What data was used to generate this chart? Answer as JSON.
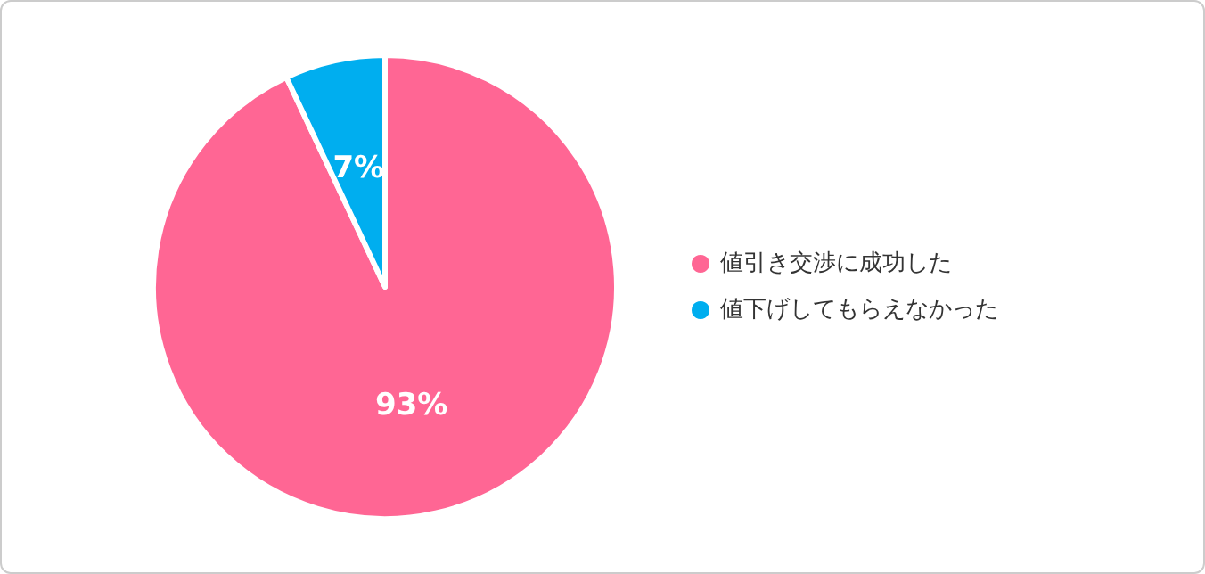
{
  "chart_data": {
    "type": "pie",
    "categories": [
      "値引き交渉に成功した",
      "値下げしてもらえなかった"
    ],
    "values": [
      93,
      7
    ],
    "colors": [
      "#ff6694",
      "#00aeef"
    ],
    "value_labels": [
      "93%",
      "7%"
    ],
    "legend": "right"
  }
}
